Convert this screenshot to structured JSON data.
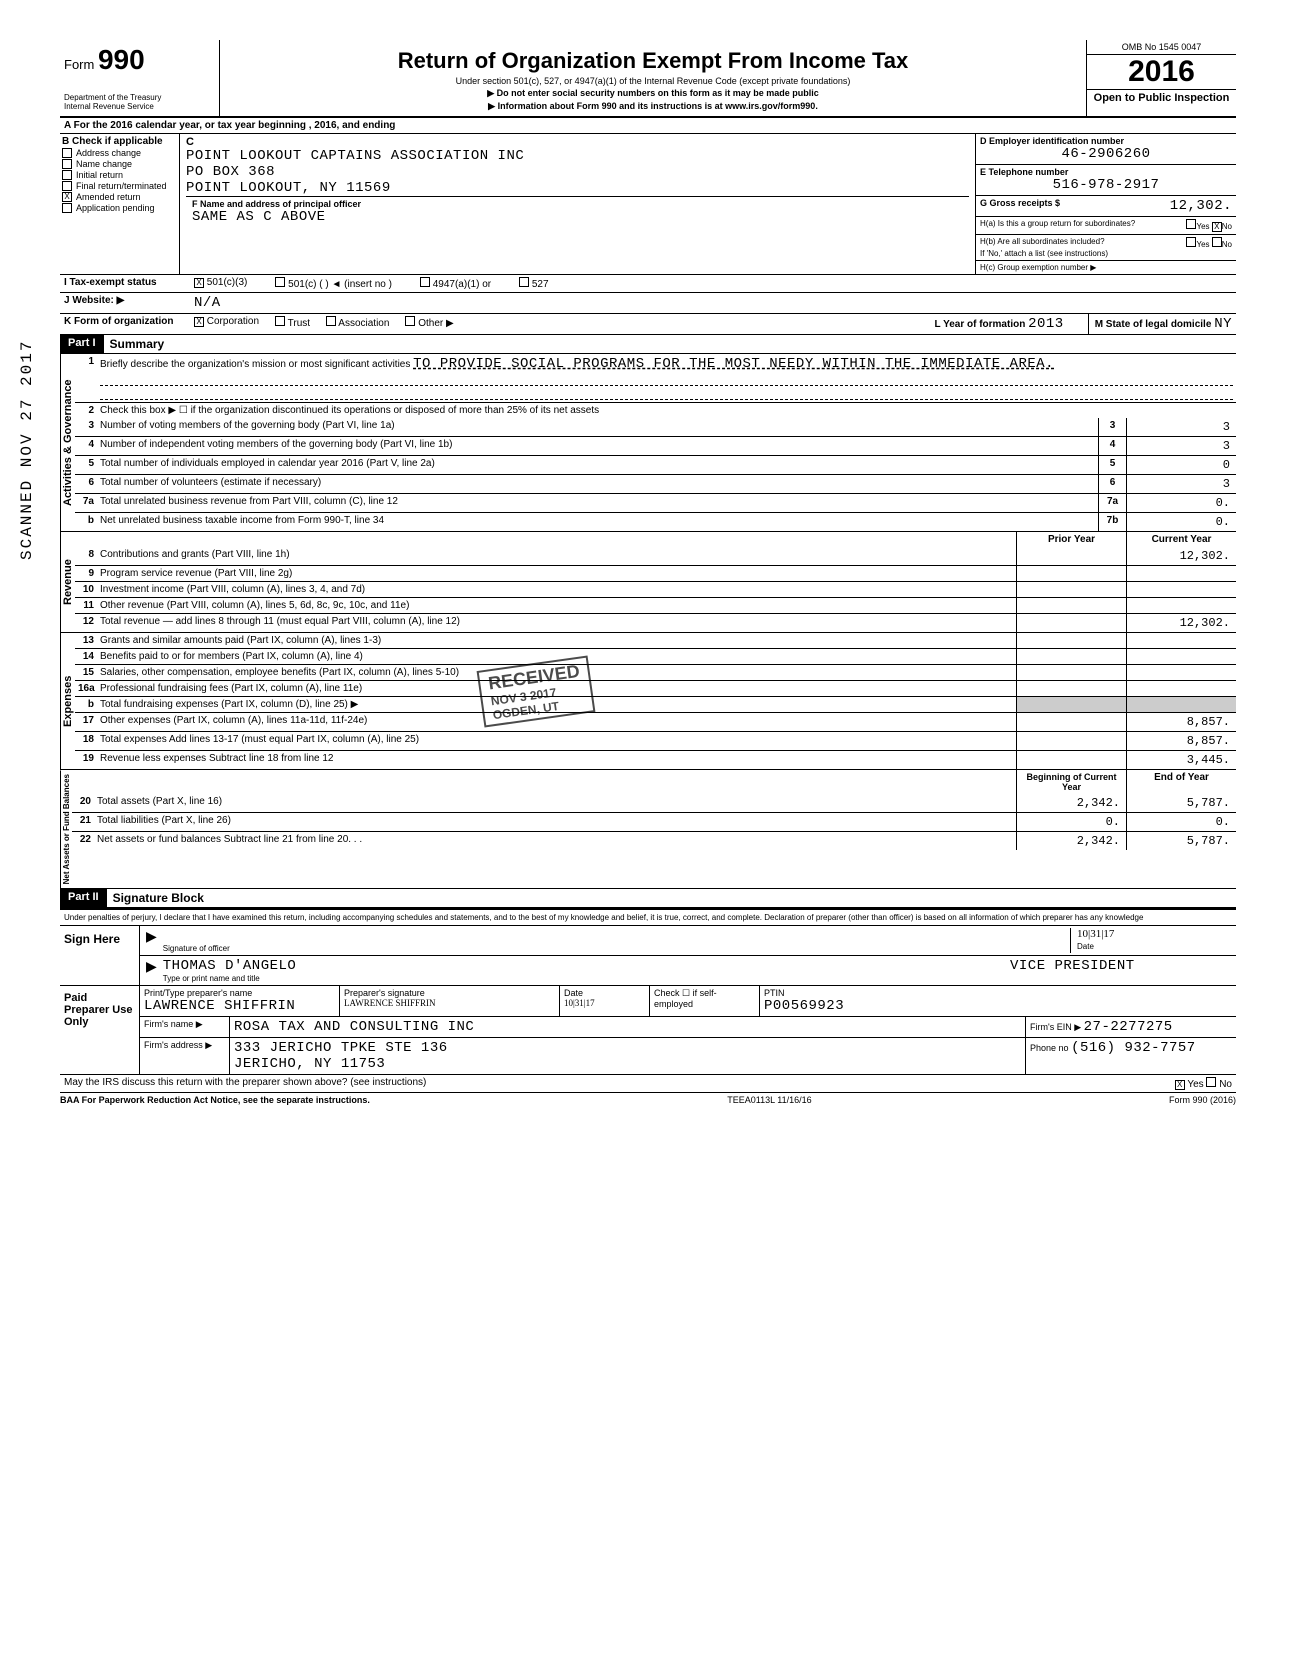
{
  "header": {
    "form_label": "Form",
    "form_number": "990",
    "dept": "Department of the Treasury\nInternal Revenue Service",
    "title": "Return of Organization Exempt From Income Tax",
    "subtitle1": "Under section 501(c), 527, or 4947(a)(1) of the Internal Revenue Code (except private foundations)",
    "subtitle2": "▶ Do not enter social security numbers on this form as it may be made public",
    "subtitle3": "▶ Information about Form 990 and its instructions is at www.irs.gov/form990.",
    "omb": "OMB No 1545 0047",
    "year": "2016",
    "open_public": "Open to Public Inspection"
  },
  "row_a": "A  For the 2016 calendar year, or tax year beginning                                         , 2016, and ending",
  "col_b": {
    "label": "B  Check if applicable",
    "items": [
      {
        "label": "Address change",
        "checked": false
      },
      {
        "label": "Name change",
        "checked": false
      },
      {
        "label": "Initial return",
        "checked": false
      },
      {
        "label": "Final return/terminated",
        "checked": false
      },
      {
        "label": "Amended return",
        "checked": true
      },
      {
        "label": "Application pending",
        "checked": false
      }
    ]
  },
  "col_c": {
    "label": "C",
    "name": "POINT LOOKOUT CAPTAINS ASSOCIATION INC",
    "addr1": "PO BOX 368",
    "addr2": "POINT LOOKOUT, NY 11569",
    "f_label": "F  Name and address of principal officer",
    "f_value": "SAME AS C ABOVE"
  },
  "col_d": {
    "d_label": "D  Employer identification number",
    "d_value": "46-2906260",
    "e_label": "E  Telephone number",
    "e_value": "516-978-2917",
    "g_label": "G  Gross receipts $",
    "g_value": "12,302.",
    "ha_label": "H(a) Is this a group return for subordinates?",
    "ha_yes": "Yes",
    "ha_no": "No",
    "ha_checked": "no",
    "hb_label": "H(b) Are all subordinates included?",
    "hb_note": "If 'No,' attach a list (see instructions)",
    "hc_label": "H(c) Group exemption number ▶"
  },
  "row_i": {
    "label": "I      Tax-exempt status",
    "opt1": "501(c)(3)",
    "opt1_checked": true,
    "opt2": "501(c) (          ) ◄  (insert no )",
    "opt3": "4947(a)(1) or",
    "opt4": "527"
  },
  "row_j": {
    "label": "J     Website: ▶",
    "value": "N/A"
  },
  "row_k": {
    "label": "K    Form of organization",
    "opts": [
      {
        "l": "Corporation",
        "c": true
      },
      {
        "l": "Trust",
        "c": false
      },
      {
        "l": "Association",
        "c": false
      },
      {
        "l": "Other ▶",
        "c": false
      }
    ],
    "l_label": "L Year of formation",
    "l_value": "2013",
    "m_label": "M State of legal domicile",
    "m_value": "NY"
  },
  "part1": {
    "header": "Part I",
    "title": "Summary",
    "line1_label": "Briefly describe the organization's mission or most significant activities",
    "line1_value": "TO PROVIDE SOCIAL PROGRAMS FOR THE MOST NEEDY WITHIN THE IMMEDIATE AREA.",
    "line2": "Check this box ▶ ☐ if the organization discontinued its operations or disposed of more than 25% of its net assets",
    "gov_lines": [
      {
        "n": "3",
        "d": "Number of voting members of the governing body (Part VI, line 1a)",
        "b": "3",
        "v": "3"
      },
      {
        "n": "4",
        "d": "Number of independent voting members of the governing body (Part VI, line 1b)",
        "b": "4",
        "v": "3"
      },
      {
        "n": "5",
        "d": "Total number of individuals employed in calendar year 2016 (Part V, line 2a)",
        "b": "5",
        "v": "0"
      },
      {
        "n": "6",
        "d": "Total number of volunteers (estimate if necessary)",
        "b": "6",
        "v": "3"
      },
      {
        "n": "7a",
        "d": "Total unrelated business revenue from Part VIII, column (C), line 12",
        "b": "7a",
        "v": "0."
      },
      {
        "n": "b",
        "d": "Net unrelated business taxable income from Form 990-T, line 34",
        "b": "7b",
        "v": "0."
      }
    ],
    "col_hdr_prior": "Prior Year",
    "col_hdr_curr": "Current Year",
    "rev_lines": [
      {
        "n": "8",
        "d": "Contributions and grants (Part VIII, line 1h)",
        "p": "",
        "c": "12,302."
      },
      {
        "n": "9",
        "d": "Program service revenue (Part VIII, line 2g)",
        "p": "",
        "c": ""
      },
      {
        "n": "10",
        "d": "Investment income (Part VIII, column (A), lines 3, 4, and 7d)",
        "p": "",
        "c": ""
      },
      {
        "n": "11",
        "d": "Other revenue (Part VIII, column (A), lines 5, 6d, 8c, 9c, 10c, and 11e)",
        "p": "",
        "c": ""
      },
      {
        "n": "12",
        "d": "Total revenue — add lines 8 through 11 (must equal Part VIII, column (A), line 12)",
        "p": "",
        "c": "12,302."
      }
    ],
    "exp_lines": [
      {
        "n": "13",
        "d": "Grants and similar amounts paid (Part IX, column (A), lines 1-3)",
        "p": "",
        "c": ""
      },
      {
        "n": "14",
        "d": "Benefits paid to or for members (Part IX, column (A), line 4)",
        "p": "",
        "c": ""
      },
      {
        "n": "15",
        "d": "Salaries, other compensation, employee benefits (Part IX, column (A), lines 5-10)",
        "p": "",
        "c": ""
      },
      {
        "n": "16a",
        "d": "Professional fundraising fees (Part IX, column (A), line 11e)",
        "p": "",
        "c": ""
      },
      {
        "n": "b",
        "d": "Total fundraising expenses (Part IX, column (D), line 25) ▶",
        "p": "shade",
        "c": "shade"
      },
      {
        "n": "17",
        "d": "Other expenses (Part IX, column (A), lines 11a-11d, 11f-24e)",
        "p": "",
        "c": "8,857."
      },
      {
        "n": "18",
        "d": "Total expenses  Add lines 13-17 (must equal Part IX, column (A), line 25)",
        "p": "",
        "c": "8,857."
      },
      {
        "n": "19",
        "d": "Revenue less expenses  Subtract line 18 from line 12",
        "p": "",
        "c": "3,445."
      }
    ],
    "na_hdr_beg": "Beginning of Current Year",
    "na_hdr_end": "End of Year",
    "na_lines": [
      {
        "n": "20",
        "d": "Total assets (Part X, line 16)",
        "p": "2,342.",
        "c": "5,787."
      },
      {
        "n": "21",
        "d": "Total liabilities (Part X, line 26)",
        "p": "0.",
        "c": "0."
      },
      {
        "n": "22",
        "d": "Net assets or fund balances  Subtract line 21 from line 20. . .",
        "p": "2,342.",
        "c": "5,787."
      }
    ],
    "vlabels": {
      "gov": "Activities & Governance",
      "rev": "Revenue",
      "exp": "Expenses",
      "na": "Net Assets or\nFund Balances"
    }
  },
  "part2": {
    "header": "Part II",
    "title": "Signature Block"
  },
  "perjury": "Under penalties of perjury, I declare that I have examined this return, including accompanying schedules and statements, and to the best of my knowledge and belief, it is true, correct, and complete. Declaration of preparer (other than officer) is based on all information of which preparer has any knowledge",
  "sign": {
    "label": "Sign Here",
    "sig_under": "Signature of officer",
    "date_under": "Date",
    "date_hand": "10|31|17",
    "name": "THOMAS D'ANGELO",
    "name_under": "Type or print name and title",
    "title": "VICE PRESIDENT"
  },
  "preparer": {
    "label": "Paid Preparer Use Only",
    "h1": "Print/Type preparer's name",
    "h2": "Preparer's signature",
    "h3": "Date",
    "h4": "Check ☐ if self-employed",
    "h5": "PTIN",
    "name": "LAWRENCE SHIFFRIN",
    "sig": "LAWRENCE SHIFFRIN",
    "date": "10|31|17",
    "ptin": "P00569923",
    "firm_label": "Firm's name  ▶",
    "firm": "ROSA TAX AND CONSULTING INC",
    "addr_label": "Firm's address  ▶",
    "addr1": "333 JERICHO TPKE STE 136",
    "addr2": "JERICHO, NY 11753",
    "ein_label": "Firm's EIN ▶",
    "ein": "27-2277275",
    "phone_label": "Phone no",
    "phone": "(516) 932-7757"
  },
  "discuss": {
    "q": "May the IRS discuss this return with the preparer shown above? (see instructions)",
    "yes": "Yes",
    "no": "No",
    "checked": "yes"
  },
  "footer": {
    "left": "BAA  For Paperwork Reduction Act Notice, see the separate instructions.",
    "mid": "TEEA0113L  11/16/16",
    "right": "Form 990 (2016)"
  },
  "side_stamp": "SCANNED NOV 27 2017",
  "received_stamp": {
    "l1": "RECEIVED",
    "l2": "NOV 3 2017",
    "l3": "OGDEN, UT"
  },
  "colors": {
    "text": "#000000",
    "bg": "#ffffff",
    "shade": "#cccccc",
    "part_hdr_bg": "#000000",
    "part_hdr_fg": "#ffffff"
  }
}
